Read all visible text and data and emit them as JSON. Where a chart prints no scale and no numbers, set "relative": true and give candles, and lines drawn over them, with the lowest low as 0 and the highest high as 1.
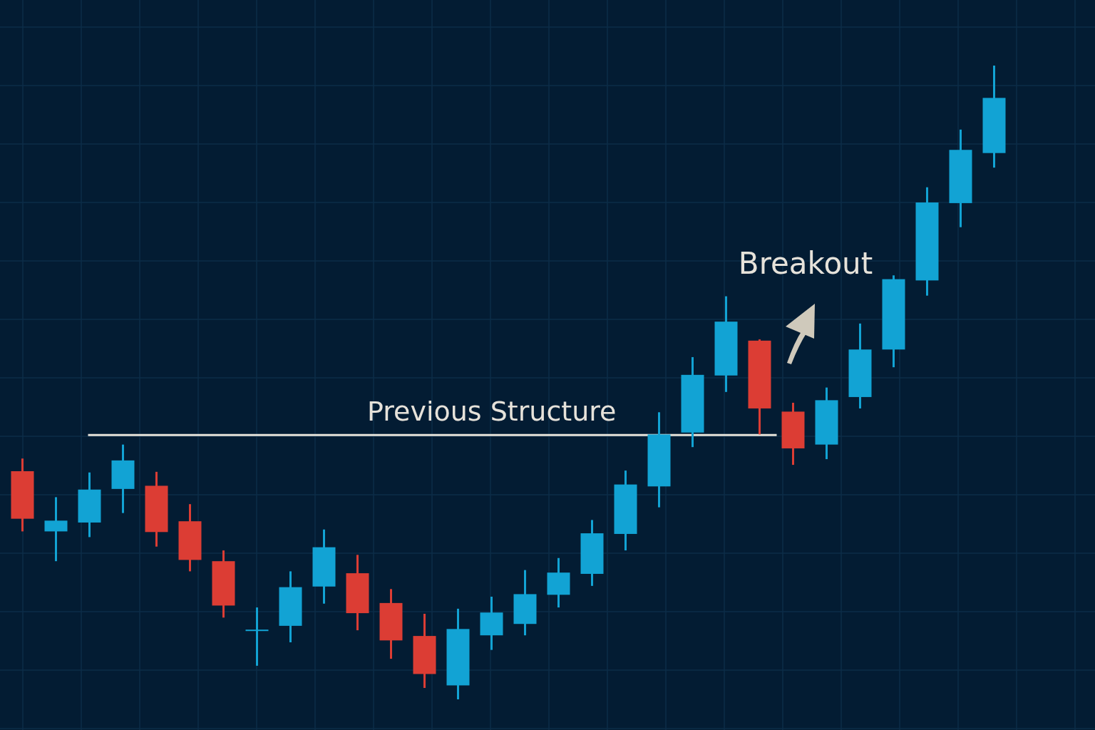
{
  "chart_data": {
    "type": "candlestick",
    "relative": true,
    "grid": true,
    "categories": [
      null,
      null,
      null,
      null,
      null,
      null,
      null,
      null,
      null,
      null,
      null,
      null,
      null,
      null,
      null,
      null,
      null,
      null,
      null,
      null,
      null,
      null,
      null,
      null,
      null,
      null,
      null,
      null,
      null,
      null
    ],
    "ohlc": [
      [
        0.36,
        0.38,
        0.265,
        0.285
      ],
      [
        0.265,
        0.319,
        0.218,
        0.282
      ],
      [
        0.279,
        0.358,
        0.256,
        0.331
      ],
      [
        0.332,
        0.402,
        0.294,
        0.377
      ],
      [
        0.337,
        0.359,
        0.241,
        0.264
      ],
      [
        0.281,
        0.308,
        0.202,
        0.22
      ],
      [
        0.218,
        0.235,
        0.129,
        0.148
      ],
      [
        0.108,
        0.145,
        0.053,
        0.11
      ],
      [
        0.116,
        0.202,
        0.09,
        0.177
      ],
      [
        0.178,
        0.268,
        0.151,
        0.24
      ],
      [
        0.199,
        0.228,
        0.109,
        0.136
      ],
      [
        0.152,
        0.174,
        0.064,
        0.093
      ],
      [
        0.1,
        0.135,
        0.018,
        0.04
      ],
      [
        0.022,
        0.143,
        0.0,
        0.111
      ],
      [
        0.101,
        0.162,
        0.078,
        0.137
      ],
      [
        0.119,
        0.204,
        0.101,
        0.166
      ],
      [
        0.165,
        0.223,
        0.145,
        0.2
      ],
      [
        0.198,
        0.283,
        0.179,
        0.262
      ],
      [
        0.261,
        0.361,
        0.235,
        0.339
      ],
      [
        0.336,
        0.453,
        0.303,
        0.418
      ],
      [
        0.421,
        0.54,
        0.398,
        0.512
      ],
      [
        0.511,
        0.636,
        0.485,
        0.596
      ],
      [
        0.566,
        0.568,
        0.418,
        0.459
      ],
      [
        0.454,
        0.468,
        0.37,
        0.396
      ],
      [
        0.402,
        0.492,
        0.379,
        0.472
      ],
      [
        0.477,
        0.593,
        0.459,
        0.552
      ],
      [
        0.552,
        0.669,
        0.524,
        0.663
      ],
      [
        0.661,
        0.808,
        0.637,
        0.784
      ],
      [
        0.783,
        0.899,
        0.745,
        0.867
      ],
      [
        0.862,
        1.0,
        0.839,
        0.949
      ]
    ],
    "colors": [
      "#dc3d34",
      "#12a3d4",
      "#12a3d4",
      "#12a3d4",
      "#dc3d34",
      "#dc3d34",
      "#dc3d34",
      "#12a3d4",
      "#12a3d4",
      "#12a3d4",
      "#dc3d34",
      "#dc3d34",
      "#dc3d34",
      "#12a3d4",
      "#12a3d4",
      "#12a3d4",
      "#12a3d4",
      "#12a3d4",
      "#12a3d4",
      "#12a3d4",
      "#12a3d4",
      "#12a3d4",
      "#dc3d34",
      "#dc3d34",
      "#12a3d4",
      "#12a3d4",
      "#12a3d4",
      "#12a3d4",
      "#12a3d4",
      "#12a3d4"
    ],
    "ref_lines": [
      {
        "axis": "y",
        "value": 0.417,
        "label": "Previous Structure",
        "color": "#e6e2da"
      }
    ],
    "annotations": [
      "Breakout"
    ]
  }
}
